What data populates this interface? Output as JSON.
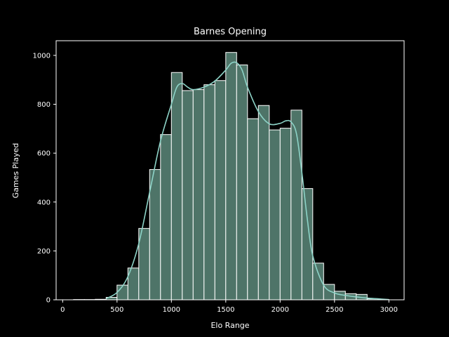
{
  "chart_data": {
    "type": "bar",
    "title": "Barnes Opening",
    "xlabel": "Elo Range",
    "ylabel": "Games Played",
    "xlim": [
      -60,
      3140
    ],
    "ylim": [
      0,
      1060
    ],
    "xticks": [
      0,
      500,
      1000,
      1500,
      2000,
      2500,
      3000
    ],
    "yticks": [
      0,
      200,
      400,
      600,
      800,
      1000
    ],
    "bin_width": 100,
    "bins": [
      {
        "x0": 100,
        "x1": 200,
        "value": 1
      },
      {
        "x0": 200,
        "x1": 300,
        "value": 1
      },
      {
        "x0": 300,
        "x1": 400,
        "value": 2
      },
      {
        "x0": 400,
        "x1": 500,
        "value": 10
      },
      {
        "x0": 500,
        "x1": 600,
        "value": 60
      },
      {
        "x0": 600,
        "x1": 700,
        "value": 130
      },
      {
        "x0": 700,
        "x1": 800,
        "value": 292
      },
      {
        "x0": 800,
        "x1": 900,
        "value": 533
      },
      {
        "x0": 900,
        "x1": 1000,
        "value": 676
      },
      {
        "x0": 1000,
        "x1": 1100,
        "value": 930
      },
      {
        "x0": 1100,
        "x1": 1200,
        "value": 856
      },
      {
        "x0": 1200,
        "x1": 1300,
        "value": 860
      },
      {
        "x0": 1300,
        "x1": 1400,
        "value": 880
      },
      {
        "x0": 1400,
        "x1": 1500,
        "value": 897
      },
      {
        "x0": 1500,
        "x1": 1600,
        "value": 1012
      },
      {
        "x0": 1600,
        "x1": 1700,
        "value": 961
      },
      {
        "x0": 1700,
        "x1": 1800,
        "value": 741
      },
      {
        "x0": 1800,
        "x1": 1900,
        "value": 795
      },
      {
        "x0": 1900,
        "x1": 2000,
        "value": 695
      },
      {
        "x0": 2000,
        "x1": 2100,
        "value": 702
      },
      {
        "x0": 2100,
        "x1": 2200,
        "value": 776
      },
      {
        "x0": 2200,
        "x1": 2300,
        "value": 455
      },
      {
        "x0": 2300,
        "x1": 2400,
        "value": 150
      },
      {
        "x0": 2400,
        "x1": 2500,
        "value": 63
      },
      {
        "x0": 2500,
        "x1": 2600,
        "value": 35
      },
      {
        "x0": 2600,
        "x1": 2700,
        "value": 25
      },
      {
        "x0": 2700,
        "x1": 2800,
        "value": 22
      },
      {
        "x0": 2800,
        "x1": 2900,
        "value": 4
      },
      {
        "x0": 2900,
        "x1": 3000,
        "value": 1
      }
    ],
    "kde": {
      "x": [
        400,
        500,
        600,
        700,
        800,
        900,
        1000,
        1050,
        1100,
        1150,
        1200,
        1300,
        1400,
        1500,
        1550,
        1600,
        1650,
        1700,
        1800,
        1900,
        2000,
        2050,
        2100,
        2150,
        2200,
        2250,
        2300,
        2400,
        2500,
        2600,
        2700,
        2800,
        2900,
        3000
      ],
      "y": [
        5,
        30,
        95,
        230,
        440,
        650,
        800,
        870,
        885,
        870,
        860,
        870,
        895,
        940,
        968,
        970,
        940,
        870,
        770,
        720,
        722,
        732,
        728,
        680,
        520,
        330,
        180,
        60,
        28,
        18,
        12,
        7,
        4,
        1
      ]
    },
    "grid": false,
    "legend": "none",
    "colors": {
      "background": "#000000",
      "bar_fill": "#4e7468",
      "bar_edge": "#ffffff",
      "kde_line": "#8dd3c7",
      "axis": "#ffffff",
      "text": "#ffffff"
    }
  }
}
